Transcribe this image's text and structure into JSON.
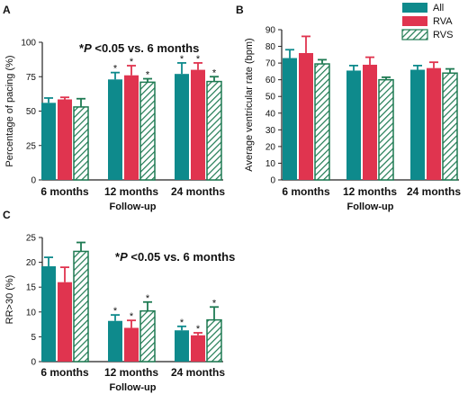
{
  "colors": {
    "All": "#0e8a8c",
    "RVA": "#e0344f",
    "RVS": "#1e7a52",
    "axis": "#222222"
  },
  "legend": [
    "All",
    "RVA",
    "RVS"
  ],
  "chart_data": [
    {
      "panel": "A",
      "type": "bar",
      "categories": [
        "6 months",
        "12 months",
        "24 months"
      ],
      "series": [
        {
          "name": "All",
          "values": [
            56,
            73,
            77
          ],
          "errors": [
            3.5,
            5,
            8
          ],
          "stars": [
            "",
            "*",
            "*"
          ]
        },
        {
          "name": "RVA",
          "values": [
            58.5,
            76,
            80
          ],
          "errors": [
            1.5,
            7,
            5
          ],
          "stars": [
            "",
            "*",
            "*"
          ]
        },
        {
          "name": "RVS",
          "values": [
            53,
            71,
            71.5
          ],
          "errors": [
            6,
            2.5,
            3.5
          ],
          "stars": [
            "",
            "*",
            "*"
          ]
        }
      ],
      "xlabel": "Follow-up",
      "ylabel": "Percentage of pacing (%)",
      "ylim": [
        0,
        100
      ],
      "yticks": [
        0,
        25,
        50,
        75,
        100
      ],
      "annotation": {
        "star": "*",
        "p": "P",
        "text": " <0.05 vs. 6 months"
      }
    },
    {
      "panel": "B",
      "type": "bar",
      "categories": [
        "6 months",
        "12 months",
        "24 months"
      ],
      "series": [
        {
          "name": "All",
          "values": [
            73,
            65.5,
            66
          ],
          "errors": [
            5,
            3,
            2.5
          ],
          "stars": [
            "",
            "",
            ""
          ]
        },
        {
          "name": "RVA",
          "values": [
            76,
            69,
            67
          ],
          "errors": [
            10,
            4.5,
            3.5
          ],
          "stars": [
            "",
            "",
            ""
          ]
        },
        {
          "name": "RVS",
          "values": [
            69.5,
            60,
            64
          ],
          "errors": [
            2.5,
            1.5,
            2.5
          ],
          "stars": [
            "",
            "",
            ""
          ]
        }
      ],
      "xlabel": "Follow-up",
      "ylabel": "Average ventricular rate (bpm)",
      "ylim": [
        0,
        90
      ],
      "yticks": [
        0,
        10,
        20,
        30,
        40,
        50,
        60,
        70,
        80,
        90
      ]
    },
    {
      "panel": "C",
      "type": "bar",
      "categories": [
        "6 months",
        "12 months",
        "24 months"
      ],
      "series": [
        {
          "name": "All",
          "values": [
            19.2,
            8.2,
            6.3
          ],
          "errors": [
            1.8,
            1.2,
            0.8
          ],
          "stars": [
            "",
            "*",
            "*"
          ]
        },
        {
          "name": "RVA",
          "values": [
            16,
            6.8,
            5.3
          ],
          "errors": [
            3,
            1.5,
            0.5
          ],
          "stars": [
            "",
            "*",
            "*"
          ]
        },
        {
          "name": "RVS",
          "values": [
            22.2,
            10.2,
            8.4
          ],
          "errors": [
            1.8,
            1.8,
            2.6
          ],
          "stars": [
            "",
            "*",
            "*"
          ]
        }
      ],
      "xlabel": "Follow-up",
      "ylabel": "RR>30 (%)",
      "ylim": [
        0,
        25
      ],
      "yticks": [
        0,
        5,
        10,
        15,
        20,
        25
      ],
      "annotation": {
        "star": "*",
        "p": "P",
        "text": " <0.05 vs. 6 months"
      }
    }
  ]
}
